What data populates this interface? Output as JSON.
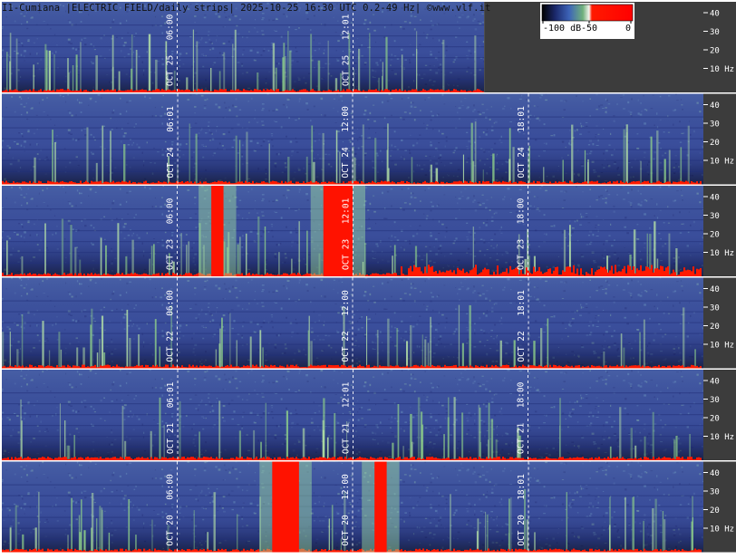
{
  "header": {
    "title": "I1-Cumiana |ELECTRIC FIELD/daily strips| 2025-10-25 16:30 UTC 0.2-49 Hz| ©www.vlf.it"
  },
  "colorbar": {
    "labels": [
      "-100 dB",
      "-50",
      "0"
    ],
    "colors": [
      "#000000",
      "#1c2a6e",
      "#3d64b8",
      "#6fb07c",
      "#f4f4ee",
      "#ff1a00",
      "#ff0000"
    ]
  },
  "chart_data": {
    "type": "heatmap",
    "title": "I1-Cumiana |ELECTRIC FIELD/daily strips| 2025-10-25 16:30 UTC 0.2-49 Hz| ©www.vlf.it",
    "ylabel": "Hz",
    "ylim": [
      0,
      49
    ],
    "y_ticks": [
      "40",
      "30",
      "20",
      "10 Hz"
    ],
    "z_range_db": [
      -100,
      0
    ],
    "strips": [
      {
        "day": "OCT 25",
        "time_marks": [
          "06:00",
          "12:01"
        ],
        "data_end_utc": "16:30",
        "strong_red_bursts_utc": []
      },
      {
        "day": "OCT 24",
        "time_marks": [
          "06:01",
          "12:00",
          "18:01"
        ],
        "strong_red_bursts_utc": []
      },
      {
        "day": "OCT 23",
        "time_marks": [
          "06:00",
          "12:01",
          "18:00"
        ],
        "strong_red_bursts_utc": [
          [
            "07:10",
            "07:35"
          ],
          [
            "11:00",
            "12:00"
          ]
        ]
      },
      {
        "day": "OCT 22",
        "time_marks": [
          "06:00",
          "12:00",
          "18:01"
        ],
        "strong_red_bursts_utc": []
      },
      {
        "day": "OCT 21",
        "time_marks": [
          "06:01",
          "12:01",
          "18:00"
        ],
        "strong_red_bursts_utc": []
      },
      {
        "day": "OCT 20",
        "time_marks": [
          "06:00",
          "12:00",
          "18:01"
        ],
        "strong_red_bursts_utc": [
          [
            "09:15",
            "10:10"
          ],
          [
            "12:45",
            "13:10"
          ]
        ]
      }
    ]
  }
}
